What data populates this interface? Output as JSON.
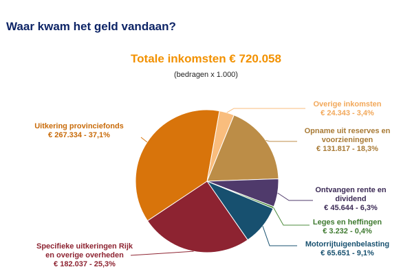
{
  "page": {
    "heading": "Waar kwam het geld vandaan?"
  },
  "chart_data": {
    "type": "pie",
    "title": "Totale inkomsten € 720.058",
    "subtitle": "(bedragen x 1.000)",
    "slices": [
      {
        "label": "Overige inkomsten",
        "value": 24343,
        "text": "€ 24.343 - 3,4%",
        "color": "#f9bd7d"
      },
      {
        "label": "Opname uit reserves en voorzieningen",
        "label_lines": [
          "Opname uit reserves en",
          "voorzieningen"
        ],
        "value": 131817,
        "text": "€ 131.817 - 18,3%",
        "color": "#bc8d47"
      },
      {
        "label": "Ontvangen rente en dividend",
        "label_lines": [
          "Ontvangen rente en",
          "dividend"
        ],
        "value": 45644,
        "text": "€ 45.644 - 6,3%",
        "color": "#4f3a6b"
      },
      {
        "label": "Leges en heffingen",
        "value": 3232,
        "text": "€ 3.232 - 0,4%",
        "color": "#4b8b3b"
      },
      {
        "label": "Motorrijtuigenbelasting",
        "value": 65651,
        "text": "€ 65.651 - 9,1%",
        "color": "#17506f"
      },
      {
        "label": "Specifieke uitkeringen Rijk en overige overheden",
        "label_lines": [
          "Specifieke uitkeringen Rijk",
          "en overige overheden"
        ],
        "value": 182037,
        "text": "€ 182.037 - 25,3%",
        "color": "#8d2331"
      },
      {
        "label": "Uitkering provinciefonds",
        "value": 267334,
        "text": "€ 267.334 - 37,1%",
        "color": "#d8740b"
      }
    ]
  }
}
